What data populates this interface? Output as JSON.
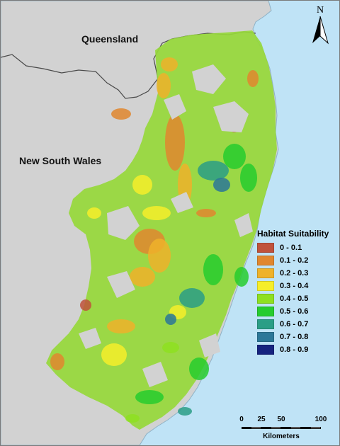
{
  "map": {
    "regions": {
      "queensland": "Queensland",
      "nsw": "New South Wales"
    },
    "north_arrow": {
      "letter": "N"
    },
    "colors": {
      "ocean": "#bfe3f6",
      "land": "#d2d2d2",
      "border": "#4a4a4a",
      "coast": "#8fb2c6"
    },
    "legend": {
      "title": "Habitat Suitability",
      "classes": [
        {
          "label": "0 - 0.1",
          "color": "#c0523b"
        },
        {
          "label": "0.1 - 0.2",
          "color": "#e0872f"
        },
        {
          "label": "0.2 - 0.3",
          "color": "#efb22a"
        },
        {
          "label": "0.3 - 0.4",
          "color": "#f6ee2a"
        },
        {
          "label": "0.4 - 0.5",
          "color": "#8ee021"
        },
        {
          "label": "0.5 - 0.6",
          "color": "#26cc2e"
        },
        {
          "label": "0.6 - 0.7",
          "color": "#2a9e86"
        },
        {
          "label": "0.7 - 0.8",
          "color": "#2c7798"
        },
        {
          "label": "0.8 - 0.9",
          "color": "#16237f"
        }
      ]
    },
    "scale_bar": {
      "ticks": [
        "0",
        "25",
        "50",
        "100"
      ],
      "unit": "Kilometers"
    }
  }
}
